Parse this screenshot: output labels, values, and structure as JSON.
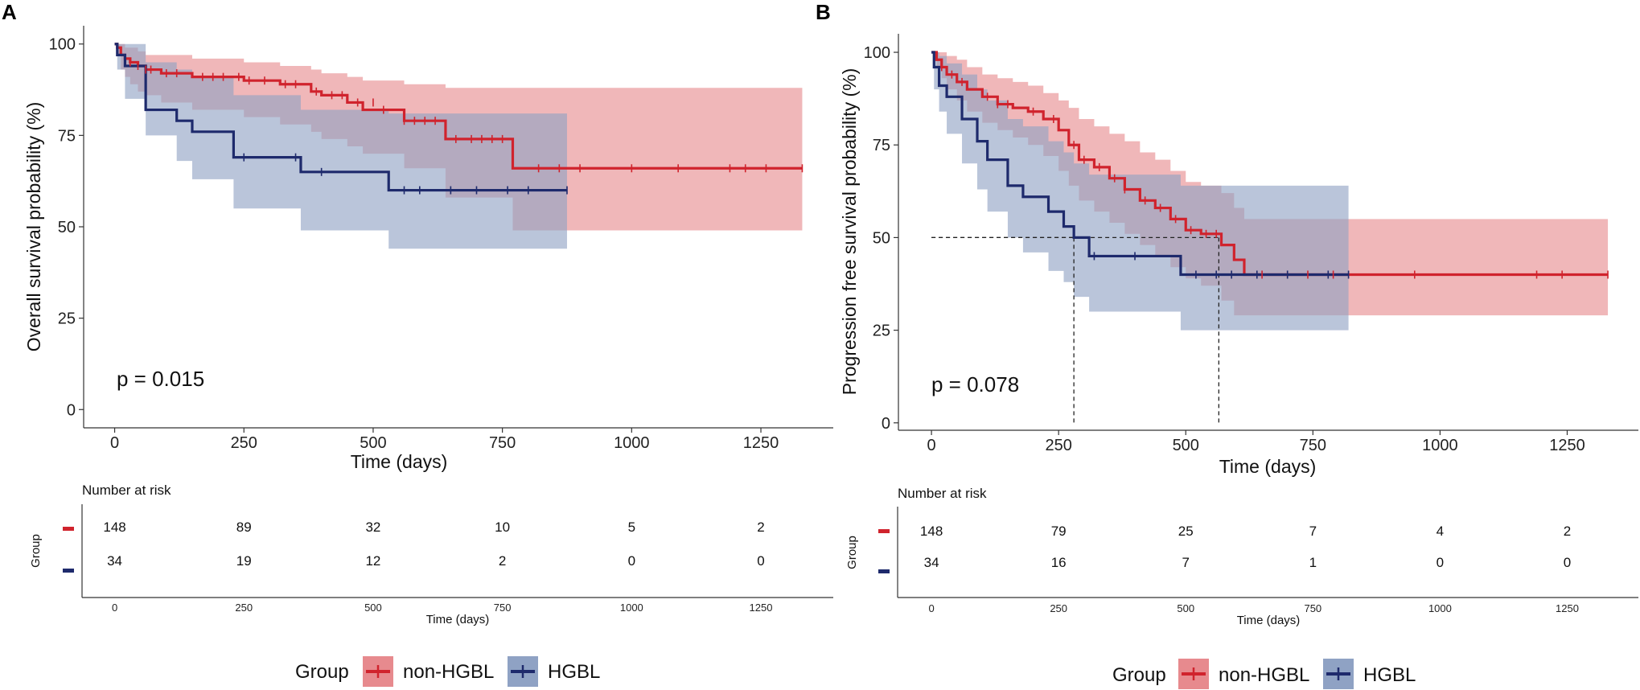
{
  "colors": {
    "non_hgbl": "#d0232d",
    "non_hgbl_band": "#e78a8e",
    "hgbl": "#1e2a6c",
    "hgbl_band": "#8fa2c4"
  },
  "legend": {
    "title": "Group",
    "items": [
      "non-HGBL",
      "HGBL"
    ]
  },
  "chart_data": [
    {
      "panel": "A",
      "type": "line",
      "subtype": "kaplan-meier",
      "ylabel": "Overall survival probability (%)",
      "xlabel": "Time (days)",
      "xlim": [
        -60,
        1390
      ],
      "ylim": [
        -5,
        105
      ],
      "xticks": [
        "0",
        "250",
        "500",
        "750",
        "1000",
        "1250"
      ],
      "xtick_values": [
        0,
        250,
        500,
        750,
        1000,
        1250
      ],
      "yticks": [
        "0",
        "25",
        "50",
        "75",
        "100"
      ],
      "ytick_values": [
        0,
        25,
        50,
        75,
        100
      ],
      "pvalue": "p = 0.015",
      "median_lines": [],
      "series": [
        {
          "name": "non-HGBL",
          "step_x": [
            0,
            5,
            12,
            20,
            30,
            45,
            60,
            90,
            150,
            250,
            320,
            380,
            400,
            450,
            480,
            560,
            640,
            770,
            1330
          ],
          "step_y": [
            100,
            99,
            97,
            96,
            95,
            94,
            93,
            92,
            91,
            90,
            89,
            87,
            86,
            84,
            82,
            79,
            74,
            66,
            66
          ],
          "lower": [
            100,
            97,
            93,
            91,
            89,
            87,
            86,
            84,
            82,
            80,
            78,
            76,
            74,
            72,
            70,
            66,
            58,
            49,
            49
          ],
          "upper": [
            100,
            100,
            100,
            99,
            99,
            98,
            97,
            97,
            96,
            95,
            94,
            93,
            92,
            91,
            90,
            89,
            88,
            88,
            88
          ],
          "censor_x": [
            30,
            45,
            60,
            70,
            100,
            120,
            170,
            190,
            210,
            240,
            260,
            290,
            330,
            350,
            390,
            420,
            440,
            470,
            500,
            520,
            560,
            580,
            600,
            620,
            660,
            690,
            710,
            730,
            750,
            820,
            860,
            900,
            1000,
            1090,
            1190,
            1220,
            1260,
            1330
          ],
          "censor_y": [
            95,
            94,
            93,
            93,
            92,
            92,
            91,
            91,
            91,
            91,
            90,
            90,
            89,
            89,
            87,
            86,
            86,
            84,
            84,
            82,
            79,
            79,
            79,
            79,
            74,
            74,
            74,
            74,
            74,
            66,
            66,
            66,
            66,
            66,
            66,
            66,
            66,
            66
          ]
        },
        {
          "name": "HGBL",
          "step_x": [
            0,
            5,
            20,
            60,
            120,
            150,
            230,
            360,
            530,
            875
          ],
          "step_y": [
            100,
            97,
            94,
            82,
            79,
            76,
            69,
            65,
            60,
            60
          ],
          "lower": [
            100,
            93,
            85,
            75,
            68,
            63,
            55,
            49,
            44,
            44
          ],
          "upper": [
            100,
            100,
            100,
            95,
            93,
            91,
            86,
            82,
            81,
            81
          ],
          "censor_x": [
            250,
            350,
            400,
            560,
            590,
            650,
            700,
            760,
            800,
            875
          ],
          "censor_y": [
            69,
            69,
            65,
            60,
            60,
            60,
            60,
            60,
            60,
            60
          ]
        }
      ],
      "risk_table": {
        "title": "Number at risk",
        "ylabel": "Group",
        "xlabel": "Time (days)",
        "rows": [
          {
            "group": "non-HGBL",
            "counts": [
              "148",
              "89",
              "32",
              "10",
              "5",
              "2"
            ]
          },
          {
            "group": "HGBL",
            "counts": [
              "34",
              "19",
              "12",
              "2",
              "0",
              "0"
            ]
          }
        ]
      }
    },
    {
      "panel": "B",
      "type": "line",
      "subtype": "kaplan-meier",
      "ylabel": "Progression free survival probability (%)",
      "xlabel": "Time (days)",
      "xlim": [
        -65,
        1390
      ],
      "ylim": [
        -2,
        105
      ],
      "xticks": [
        "0",
        "250",
        "500",
        "750",
        "1000",
        "1250"
      ],
      "xtick_values": [
        0,
        250,
        500,
        750,
        1000,
        1250
      ],
      "yticks": [
        "0",
        "25",
        "50",
        "75",
        "100"
      ],
      "ytick_values": [
        0,
        25,
        50,
        75,
        100
      ],
      "pvalue": "p = 0.078",
      "median_lines": [
        {
          "x": 280,
          "y": 50
        },
        {
          "x": 565,
          "y": 50
        }
      ],
      "series": [
        {
          "name": "non-HGBL",
          "step_x": [
            0,
            10,
            20,
            30,
            50,
            70,
            100,
            130,
            160,
            190,
            220,
            250,
            270,
            290,
            320,
            350,
            380,
            410,
            440,
            470,
            500,
            530,
            570,
            595,
            615,
            1330
          ],
          "step_y": [
            100,
            98,
            96,
            94,
            92,
            90,
            88,
            86,
            85,
            84,
            82,
            79,
            75,
            71,
            69,
            66,
            63,
            60,
            58,
            55,
            52,
            51,
            48,
            44,
            40,
            40
          ],
          "lower": [
            100,
            96,
            93,
            90,
            87,
            84,
            81,
            79,
            77,
            75,
            72,
            68,
            64,
            60,
            57,
            54,
            51,
            48,
            45,
            42,
            39,
            37,
            33,
            29,
            29,
            29
          ],
          "upper": [
            100,
            100,
            100,
            99,
            98,
            96,
            94,
            93,
            92,
            91,
            89,
            87,
            85,
            82,
            80,
            78,
            76,
            73,
            71,
            68,
            65,
            64,
            62,
            58,
            55,
            55
          ],
          "censor_x": [
            20,
            40,
            60,
            110,
            130,
            150,
            200,
            240,
            280,
            300,
            330,
            360,
            380,
            420,
            450,
            480,
            510,
            540,
            560,
            650,
            700,
            740,
            790,
            950,
            1190,
            1240,
            1330
          ],
          "censor_y": [
            96,
            94,
            92,
            88,
            86,
            86,
            84,
            82,
            75,
            71,
            69,
            66,
            63,
            60,
            58,
            55,
            52,
            51,
            51,
            40,
            40,
            40,
            40,
            40,
            40,
            40,
            40
          ]
        },
        {
          "name": "HGBL",
          "step_x": [
            0,
            5,
            15,
            30,
            60,
            90,
            110,
            150,
            180,
            230,
            260,
            280,
            310,
            490,
            820
          ],
          "step_y": [
            100,
            96,
            91,
            88,
            82,
            76,
            71,
            64,
            61,
            57,
            53,
            50,
            45,
            40,
            40
          ],
          "lower": [
            100,
            90,
            84,
            78,
            70,
            63,
            57,
            50,
            46,
            41,
            38,
            34,
            30,
            25,
            25
          ],
          "upper": [
            100,
            100,
            99,
            97,
            94,
            90,
            87,
            82,
            80,
            76,
            73,
            70,
            67,
            64,
            64
          ],
          "censor_x": [
            320,
            400,
            520,
            560,
            590,
            640,
            700,
            780,
            820
          ],
          "censor_y": [
            45,
            45,
            40,
            40,
            40,
            40,
            40,
            40,
            40
          ]
        }
      ],
      "risk_table": {
        "title": "Number at risk",
        "ylabel": "Group",
        "xlabel": "Time (days)",
        "rows": [
          {
            "group": "non-HGBL",
            "counts": [
              "148",
              "79",
              "25",
              "7",
              "4",
              "2"
            ]
          },
          {
            "group": "HGBL",
            "counts": [
              "34",
              "16",
              "7",
              "1",
              "0",
              "0"
            ]
          }
        ]
      }
    }
  ]
}
